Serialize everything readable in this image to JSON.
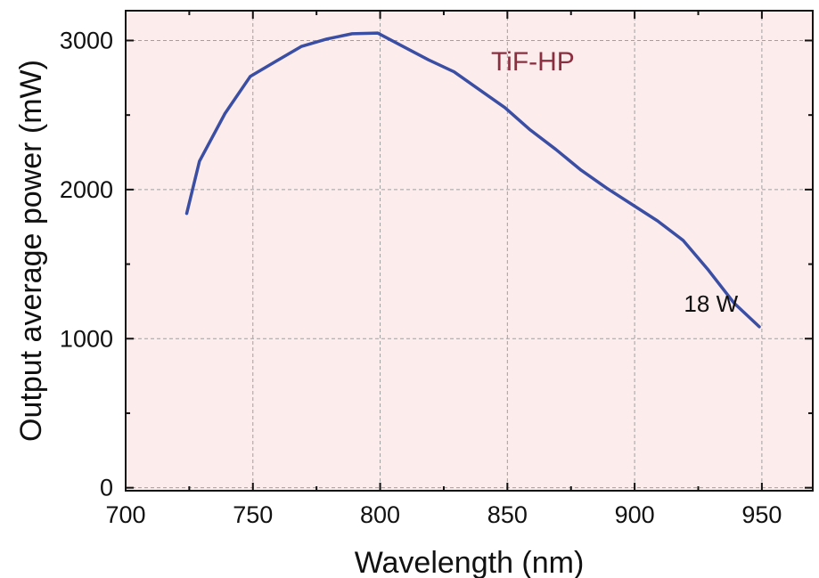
{
  "chart_data": {
    "type": "line",
    "title": "",
    "xlabel": "Wavelength (nm)",
    "ylabel": "Output average power (mW)",
    "xlim": [
      700,
      970
    ],
    "ylim": [
      -20,
      3200
    ],
    "x_ticks": [
      700,
      750,
      800,
      850,
      900,
      950
    ],
    "y_ticks": [
      0,
      1000,
      2000,
      3000
    ],
    "grid": true,
    "annotations": [
      {
        "text": "TiF-HP",
        "x": 860,
        "y": 2800,
        "color": "#8b2e3f"
      },
      {
        "text": "18 W",
        "x": 930,
        "y": 1180,
        "color": "#111111"
      }
    ],
    "series": [
      {
        "color": "#3a4ea3",
        "x": [
          724,
          729,
          739,
          749,
          759,
          769,
          779,
          789,
          799,
          809,
          819,
          829,
          839,
          849,
          859,
          869,
          879,
          889,
          899,
          909,
          919,
          929,
          939,
          949
        ],
        "y": [
          1840,
          2190,
          2510,
          2760,
          2860,
          2960,
          3010,
          3045,
          3050,
          2960,
          2870,
          2790,
          2670,
          2550,
          2400,
          2270,
          2130,
          2010,
          1900,
          1790,
          1660,
          1460,
          1240,
          1080
        ]
      }
    ],
    "background": "#fdecec"
  }
}
